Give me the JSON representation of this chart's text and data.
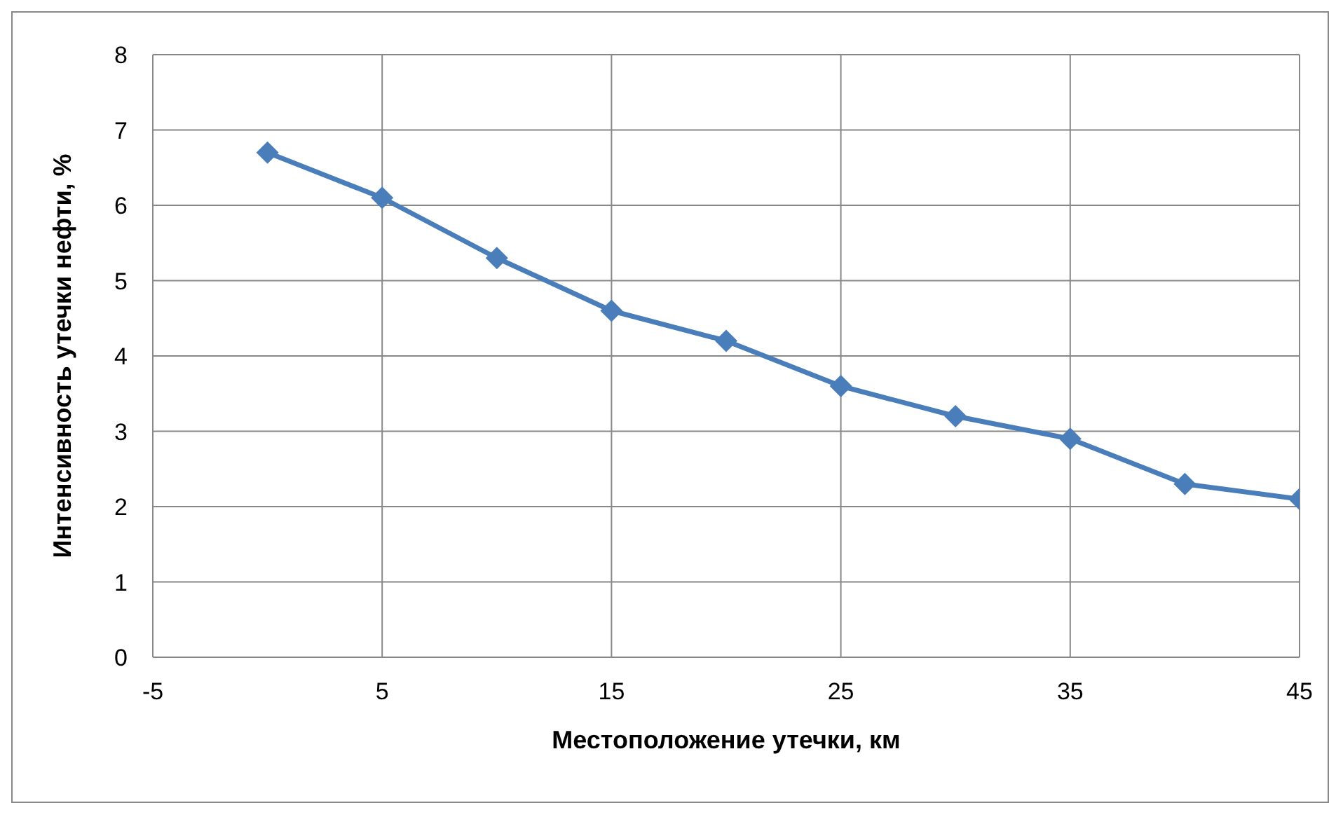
{
  "chart_data": {
    "type": "line",
    "xlabel": "Местоположение утечки, км",
    "ylabel": "Интенсивность утечки нефти, %",
    "x": [
      0,
      5,
      10,
      15,
      20,
      25,
      30,
      35,
      40,
      45
    ],
    "series": [
      {
        "color": "#4a7ebb",
        "values": [
          6.7,
          6.1,
          5.3,
          4.6,
          4.2,
          3.6,
          3.2,
          2.9,
          2.3,
          2.1
        ]
      }
    ],
    "xlim": [
      -5,
      45
    ],
    "xticks": [
      -5,
      5,
      15,
      25,
      35,
      45
    ],
    "ylim": [
      0,
      8
    ],
    "yticks": [
      0,
      1,
      2,
      3,
      4,
      5,
      6,
      7,
      8
    ],
    "grid": true,
    "legend": false,
    "marker": "diamond",
    "line_style": "solid"
  }
}
